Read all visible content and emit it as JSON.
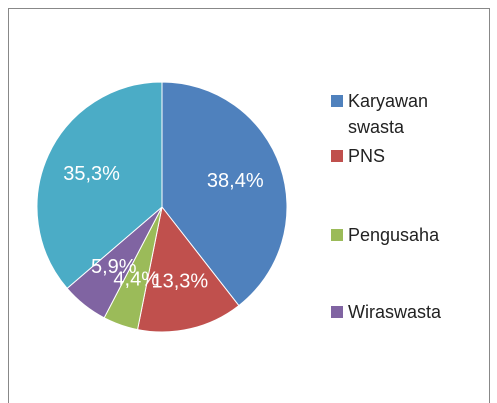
{
  "chart_data": {
    "type": "pie",
    "categories": [
      "Karyawan swasta",
      "PNS",
      "Pengusaha",
      "Wiraswasta",
      null
    ],
    "values": [
      38.4,
      13.3,
      4.4,
      5.9,
      35.3
    ],
    "value_labels": [
      "38,4%",
      "13,3%",
      "4,4%",
      "5,9%",
      "35,3%"
    ],
    "colors": [
      "#4f81bd",
      "#c0504d",
      "#9bbb59",
      "#8064a2",
      "#4bacc6"
    ],
    "legend": "right"
  }
}
